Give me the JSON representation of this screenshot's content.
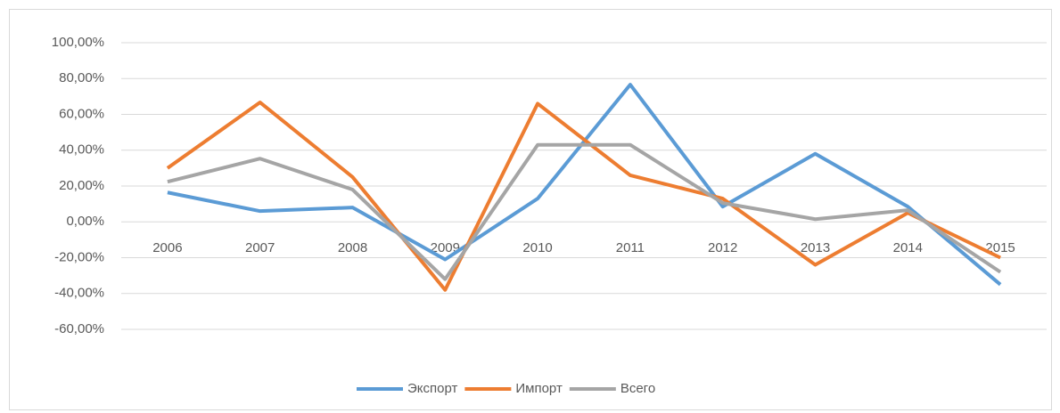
{
  "chart_data": {
    "type": "line",
    "categories": [
      "2006",
      "2007",
      "2008",
      "2009",
      "2010",
      "2011",
      "2012",
      "2013",
      "2014",
      "2015"
    ],
    "series": [
      {
        "name": "Экспорт",
        "color": "#5b9bd5",
        "values": [
          16.4,
          6,
          8,
          -21,
          13,
          76.6,
          8.5,
          38,
          8.5,
          -35
        ]
      },
      {
        "name": "Импорт",
        "color": "#ed7d31",
        "values": [
          30,
          66.7,
          25,
          -38,
          66,
          26,
          13,
          -24,
          5,
          -20
        ]
      },
      {
        "name": "Всего",
        "color": "#a5a5a5",
        "values": [
          22.4,
          35.3,
          18,
          -32,
          43,
          43,
          10.5,
          1.5,
          6.5,
          -28
        ]
      }
    ],
    "ylim": [
      -60,
      100
    ],
    "yticks": [
      {
        "value": -60,
        "label": "-60,00%"
      },
      {
        "value": -40,
        "label": "-40,00%"
      },
      {
        "value": -20,
        "label": "-20,00%"
      },
      {
        "value": 0,
        "label": "0,00%"
      },
      {
        "value": 20,
        "label": "20,00%"
      },
      {
        "value": 40,
        "label": "40,00%"
      },
      {
        "value": 60,
        "label": "60,00%"
      },
      {
        "value": 80,
        "label": "80,00%"
      },
      {
        "value": 100,
        "label": "100,00%"
      }
    ],
    "grid": true,
    "legend": "bottom"
  }
}
